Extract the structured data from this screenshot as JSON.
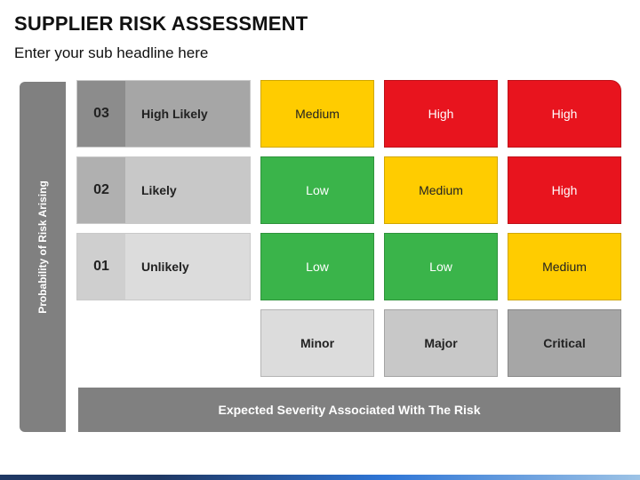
{
  "header": {
    "title": "SUPPLIER RISK ASSESSMENT",
    "subtitle": "Enter your sub headline here"
  },
  "axes": {
    "probability_label": "Probability of Risk Arising",
    "severity_label": "Expected Severity Associated With The Risk"
  },
  "colors": {
    "medium": "#FFCC00",
    "high": "#E8141E",
    "low": "#3AB44A",
    "axis_bar": "#808080",
    "footer_dark": "#1F3864",
    "footer_light": "#2E75D6"
  },
  "probability_rows": [
    {
      "number": "03",
      "label": "High Likely"
    },
    {
      "number": "02",
      "label": "Likely"
    },
    {
      "number": "01",
      "label": "Unlikely"
    }
  ],
  "severity_columns": [
    "Minor",
    "Major",
    "Critical"
  ],
  "matrix": [
    [
      "Medium",
      "High",
      "High"
    ],
    [
      "Low",
      "Medium",
      "High"
    ],
    [
      "Low",
      "Low",
      "Medium"
    ]
  ]
}
